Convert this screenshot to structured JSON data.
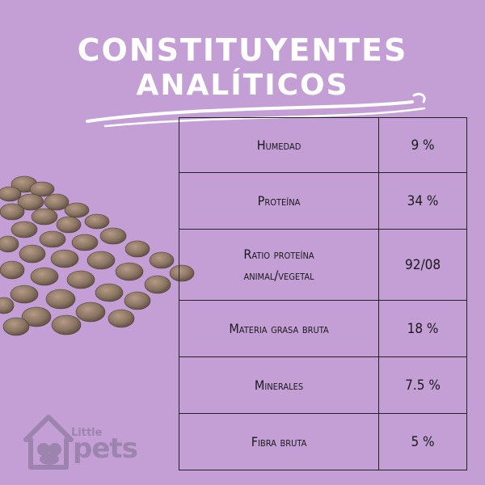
{
  "title": {
    "line1": "CONSTITUYENTES",
    "line2": "ANALÍTICOS"
  },
  "table": {
    "rows": [
      {
        "name": "Humedad",
        "value": "9 %"
      },
      {
        "name": "Proteína",
        "value": "34 %"
      },
      {
        "name_line1": "Ratio proteína",
        "name_line2": "animal/vegetal",
        "value": "92/08"
      },
      {
        "name": "Materia grasa bruta",
        "value": "18 %"
      },
      {
        "name": "Minerales",
        "value": "7.5 %"
      },
      {
        "name": "Fibra bruta",
        "value": "5 %"
      }
    ]
  },
  "brand": {
    "small": "Little",
    "big": "pets",
    "logo_icon": "house-pets-logo"
  },
  "colors": {
    "background": "#c39fd6",
    "table_border": "#222222",
    "title": "#ffffff",
    "kibble": "#8a7462",
    "logo": "#9c84ae"
  }
}
